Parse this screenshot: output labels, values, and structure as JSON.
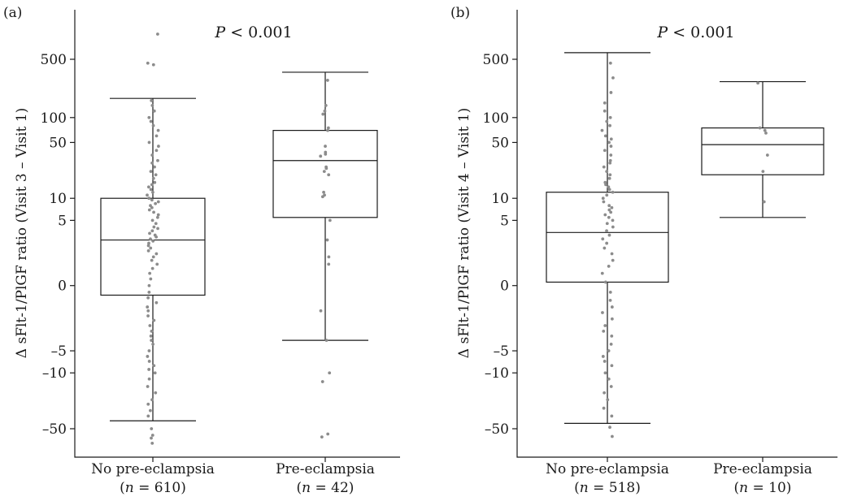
{
  "chart_data": [
    {
      "type": "box",
      "panel_label": "(a)",
      "annotation_italic": "P",
      "annotation_rest": " < 0.001",
      "ylabel": "Δ sFlt-1/PlGF ratio (Visit 3 – Visit 1)",
      "y_scale": "symmetric-log",
      "y_ticks": [
        "500",
        "100",
        "50",
        "10",
        "5",
        "0",
        "–5",
        "–10",
        "–50"
      ],
      "groups": [
        {
          "name": "No pre-eclampsia",
          "n_label": "(n = 610)",
          "n_italic": "n",
          "n_rest": " = 610",
          "whisker_low": -40,
          "q1": -0.3,
          "median": 2.5,
          "q3": 10,
          "whisker_high": 170,
          "points": [
            1000,
            450,
            430,
            160,
            140,
            120,
            100,
            90,
            80,
            70,
            60,
            50,
            45,
            40,
            35,
            30,
            28,
            25,
            22,
            20,
            18,
            16,
            15,
            14,
            13,
            12,
            11,
            10,
            9.5,
            9,
            8.5,
            8,
            7.5,
            7,
            6.5,
            6,
            5.5,
            5,
            4.5,
            4,
            3.8,
            3.5,
            3.2,
            3,
            2.8,
            2.6,
            2.4,
            2.2,
            2,
            1.8,
            1.6,
            1.4,
            1.2,
            1,
            0.8,
            0.6,
            0.4,
            0.2,
            0,
            -0.2,
            -0.4,
            -0.6,
            -0.8,
            -1,
            -1.3,
            -1.6,
            -2,
            -2.5,
            -3,
            -3.5,
            -4,
            -5,
            -6,
            -7,
            -8,
            -9,
            -10,
            -12,
            -15,
            -18,
            -22,
            -25,
            -30,
            -35,
            -50,
            -60,
            -65,
            -75
          ]
        },
        {
          "name": "Pre-eclampsia",
          "n_label": "(n = 42)",
          "n_italic": "n",
          "n_rest": " = 42",
          "whisker_low": -3.5,
          "q1": 5.5,
          "median": 30,
          "q3": 70,
          "whisker_high": 350,
          "points": [
            280,
            140,
            120,
            110,
            75,
            70,
            45,
            38,
            36,
            34,
            25,
            24,
            22,
            20,
            12,
            11,
            10.5,
            5,
            2.5,
            1.2,
            0.8,
            -1,
            -3.5,
            -10,
            -13,
            -58,
            -63
          ]
        }
      ]
    },
    {
      "type": "box",
      "panel_label": "(b)",
      "annotation_italic": "P",
      "annotation_rest": " < 0.001",
      "ylabel": "Δ sFlt-1/PlGF ratio (Visit 4 – Visit 1)",
      "y_scale": "symmetric-log",
      "y_ticks": [
        "500",
        "100",
        "50",
        "10",
        "5",
        "0",
        "–5",
        "–10",
        "–50"
      ],
      "groups": [
        {
          "name": "No pre-eclampsia",
          "n_label": "(n = 518)",
          "n_italic": "n",
          "n_rest": " = 518",
          "whisker_low": -43,
          "q1": 0.1,
          "median": 3.3,
          "q3": 12,
          "whisker_high": 600,
          "points": [
            450,
            300,
            200,
            150,
            120,
            100,
            90,
            80,
            70,
            60,
            55,
            50,
            45,
            40,
            35,
            30,
            28,
            25,
            22,
            20,
            18,
            16,
            15,
            14,
            13,
            12,
            11,
            10,
            9,
            8,
            7.5,
            7,
            6.5,
            6,
            5.5,
            5,
            4.5,
            4,
            3.5,
            3,
            2.6,
            2.2,
            1.8,
            1.4,
            1,
            0.7,
            0.4,
            0.1,
            -0.2,
            -0.5,
            -0.8,
            -1.1,
            -1.5,
            -2,
            -2.5,
            -3,
            -4,
            -5,
            -6,
            -7,
            -8,
            -10,
            -12,
            -15,
            -18,
            -22,
            -28,
            -35,
            -48,
            -62
          ]
        },
        {
          "name": "Pre-eclampsia",
          "n_label": "(n = 10)",
          "n_italic": "n",
          "n_rest": " = 10",
          "whisker_low": 5.5,
          "q1": 20,
          "median": 47,
          "q3": 75,
          "whisker_high": 270,
          "points": [
            260,
            75,
            70,
            65,
            35,
            22,
            9
          ]
        }
      ]
    }
  ]
}
